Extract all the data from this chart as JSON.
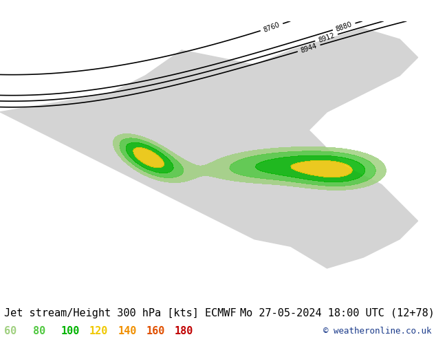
{
  "title_left": "Jet stream/Height 300 hPa [kts] ECMWF",
  "title_right": "Mo 27-05-2024 18:00 UTC (12+78)",
  "copyright": "© weatheronline.co.uk",
  "legend_values": [
    60,
    80,
    100,
    120,
    140,
    160,
    180
  ],
  "legend_colors": [
    "#a0d080",
    "#50c840",
    "#00b400",
    "#f0c800",
    "#f09000",
    "#e05000",
    "#c00000"
  ],
  "bg_color": "#e8e8e8",
  "map_ocean_color": "#ddeeff",
  "map_land_color": "#c8c8c8",
  "title_fontsize": 11,
  "legend_fontsize": 11,
  "copyright_fontsize": 9,
  "figsize": [
    6.34,
    4.9
  ],
  "dpi": 100
}
